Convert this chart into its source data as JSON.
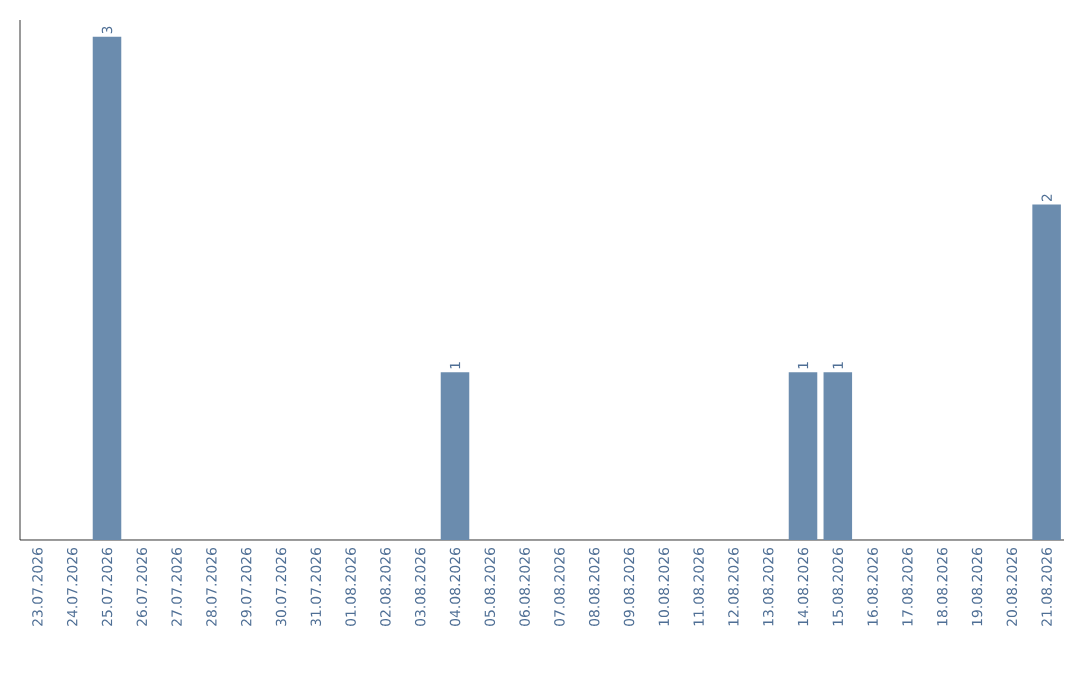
{
  "chart_data": {
    "type": "bar",
    "categories": [
      "23.07.2026",
      "24.07.2026",
      "25.07.2026",
      "26.07.2026",
      "27.07.2026",
      "28.07.2026",
      "29.07.2026",
      "30.07.2026",
      "31.07.2026",
      "01.08.2026",
      "02.08.2026",
      "03.08.2026",
      "04.08.2026",
      "05.08.2026",
      "06.08.2026",
      "07.08.2026",
      "08.08.2026",
      "09.08.2026",
      "10.08.2026",
      "11.08.2026",
      "12.08.2026",
      "13.08.2026",
      "14.08.2026",
      "15.08.2026",
      "16.08.2026",
      "17.08.2026",
      "18.08.2026",
      "19.08.2026",
      "20.08.2026",
      "21.08.2026"
    ],
    "values": [
      0,
      0,
      3,
      0,
      0,
      0,
      0,
      0,
      0,
      0,
      0,
      0,
      1,
      0,
      0,
      0,
      0,
      0,
      0,
      0,
      0,
      0,
      1,
      1,
      0,
      0,
      0,
      0,
      0,
      2
    ],
    "value_labels": [
      null,
      null,
      "3",
      null,
      null,
      null,
      null,
      null,
      null,
      null,
      null,
      null,
      "1",
      null,
      null,
      null,
      null,
      null,
      null,
      null,
      null,
      null,
      "1",
      "1",
      null,
      null,
      null,
      null,
      null,
      "2"
    ],
    "color": "#6b8cae",
    "ylim": [
      0,
      3.1
    ]
  }
}
